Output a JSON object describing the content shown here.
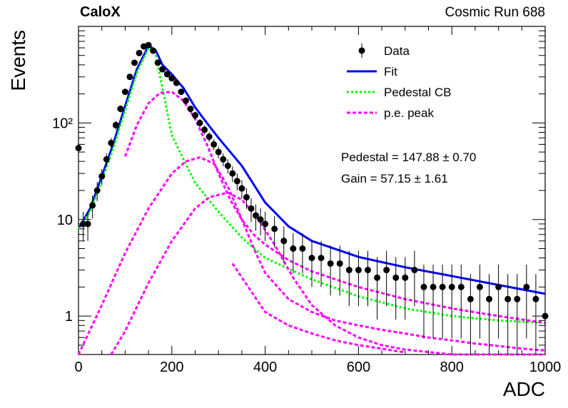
{
  "header": {
    "left_title": "CaloX",
    "right_title": "Cosmic Run 688"
  },
  "stats": {
    "pedestal_text": "Pedestal = 147.88 ± 0.70",
    "gain_text": "Gain = 57.15 ± 1.61"
  },
  "chart_data": {
    "type": "scatter",
    "title": "",
    "xlabel": "ADC",
    "ylabel": "Events",
    "xlim": [
      0,
      1000
    ],
    "ylim": [
      0.4,
      1000
    ],
    "yscale": "log",
    "x_ticks": [
      0,
      200,
      400,
      600,
      800,
      1000
    ],
    "x_tick_labels": [
      "0",
      "200",
      "400",
      "600",
      "800",
      "1000"
    ],
    "y_ticks": [
      1,
      10,
      100
    ],
    "y_tick_labels": [
      "1",
      "10",
      "10²"
    ],
    "legend_position": "top-right",
    "colors": {
      "data": "#000000",
      "fit": "#0000ff",
      "pedestal": "#00ff00",
      "pe": "#ff00ff"
    },
    "legend": [
      {
        "key": "data",
        "label": "Data"
      },
      {
        "key": "fit",
        "label": "Fit"
      },
      {
        "key": "pedestal",
        "label": "Pedestal CB"
      },
      {
        "key": "pe",
        "label": "p.e. peak"
      }
    ],
    "series": [
      {
        "name": "Data",
        "kind": "points",
        "x": [
          0,
          10,
          20,
          30,
          40,
          50,
          60,
          70,
          80,
          90,
          100,
          110,
          120,
          130,
          140,
          150,
          160,
          170,
          180,
          190,
          200,
          210,
          220,
          230,
          240,
          250,
          260,
          270,
          280,
          290,
          300,
          310,
          320,
          330,
          340,
          350,
          360,
          370,
          380,
          390,
          400,
          420,
          440,
          460,
          480,
          500,
          520,
          540,
          560,
          580,
          600,
          620,
          640,
          660,
          680,
          700,
          720,
          740,
          760,
          780,
          800,
          820,
          840,
          860,
          880,
          900,
          920,
          940,
          960,
          980,
          1000
        ],
        "y": [
          55,
          9,
          9,
          14,
          20,
          28,
          42,
          62,
          95,
          140,
          210,
          300,
          420,
          530,
          620,
          640,
          560,
          420,
          360,
          320,
          290,
          260,
          210,
          170,
          140,
          120,
          100,
          85,
          72,
          60,
          50,
          42,
          36,
          30,
          25,
          21,
          17,
          13,
          11,
          10,
          9,
          8,
          6,
          5,
          5,
          4,
          4,
          3.5,
          3.5,
          3,
          3,
          3,
          2.5,
          3,
          2.5,
          2.5,
          3,
          2,
          2,
          2,
          2,
          2,
          1.5,
          2,
          1.5,
          2,
          1.5,
          1.5,
          2,
          1.5,
          1
        ]
      },
      {
        "name": "Fit",
        "kind": "line",
        "x": [
          0,
          25,
          50,
          75,
          100,
          125,
          150,
          165,
          180,
          200,
          225,
          250,
          275,
          300,
          350,
          400,
          450,
          500,
          600,
          700,
          800,
          900,
          1000
        ],
        "y": [
          8,
          13,
          28,
          62,
          150,
          360,
          630,
          570,
          400,
          320,
          230,
          145,
          100,
          70,
          36,
          15,
          8.5,
          6,
          4.1,
          3.2,
          2.6,
          2.1,
          1.7
        ]
      },
      {
        "name": "Pedestal CB",
        "kind": "line",
        "x": [
          0,
          25,
          50,
          75,
          100,
          125,
          150,
          165,
          180,
          200,
          225,
          250,
          275,
          300,
          350,
          400,
          500,
          600,
          700,
          800,
          900,
          1000
        ],
        "y": [
          8,
          12,
          25,
          55,
          135,
          330,
          600,
          520,
          230,
          75,
          42,
          24,
          17,
          12,
          6.5,
          4,
          2.4,
          1.6,
          1.2,
          1.0,
          0.9,
          0.85
        ]
      },
      {
        "name": "p.e. peak 1",
        "kind": "line",
        "x": [
          100,
          125,
          150,
          175,
          200,
          225,
          250,
          275,
          300,
          325,
          350,
          375,
          400,
          450,
          500,
          600,
          700,
          800,
          900,
          1000
        ],
        "y": [
          45,
          95,
          160,
          205,
          210,
          170,
          110,
          60,
          30,
          16,
          10,
          7,
          5.5,
          3.8,
          2.9,
          2.0,
          1.5,
          1.2,
          1.0,
          0.85
        ]
      },
      {
        "name": "p.e. peak 2",
        "kind": "line",
        "x": [
          0,
          50,
          100,
          150,
          200,
          230,
          260,
          290,
          320,
          350,
          380,
          400,
          450,
          500,
          550,
          600,
          650,
          700,
          750,
          800,
          850,
          900,
          950,
          1000
        ],
        "y": [
          0.4,
          1.3,
          4.5,
          13,
          30,
          40,
          44,
          38,
          22,
          10,
          4.5,
          2.8,
          1.5,
          1.1,
          0.9,
          0.8,
          0.72,
          0.66,
          0.6,
          0.56,
          0.52,
          0.49,
          0.46,
          0.44
        ]
      },
      {
        "name": "p.e. peak 3",
        "kind": "line",
        "x": [
          70,
          100,
          150,
          200,
          250,
          280,
          320,
          350,
          380,
          420,
          460,
          500,
          550,
          600,
          650,
          700,
          800,
          900,
          1000
        ],
        "y": [
          0.4,
          0.7,
          2.2,
          6,
          13,
          17,
          19,
          16,
          11,
          5.5,
          2.5,
          1.3,
          0.8,
          0.6,
          0.5,
          0.45,
          0.4,
          0.4,
          0.4
        ]
      },
      {
        "name": "p.e. peak 4",
        "kind": "line",
        "x": [
          330,
          400,
          450,
          500,
          550,
          600,
          650,
          700
        ],
        "y": [
          3.5,
          1.1,
          0.8,
          0.66,
          0.56,
          0.5,
          0.46,
          0.42
        ]
      }
    ]
  }
}
